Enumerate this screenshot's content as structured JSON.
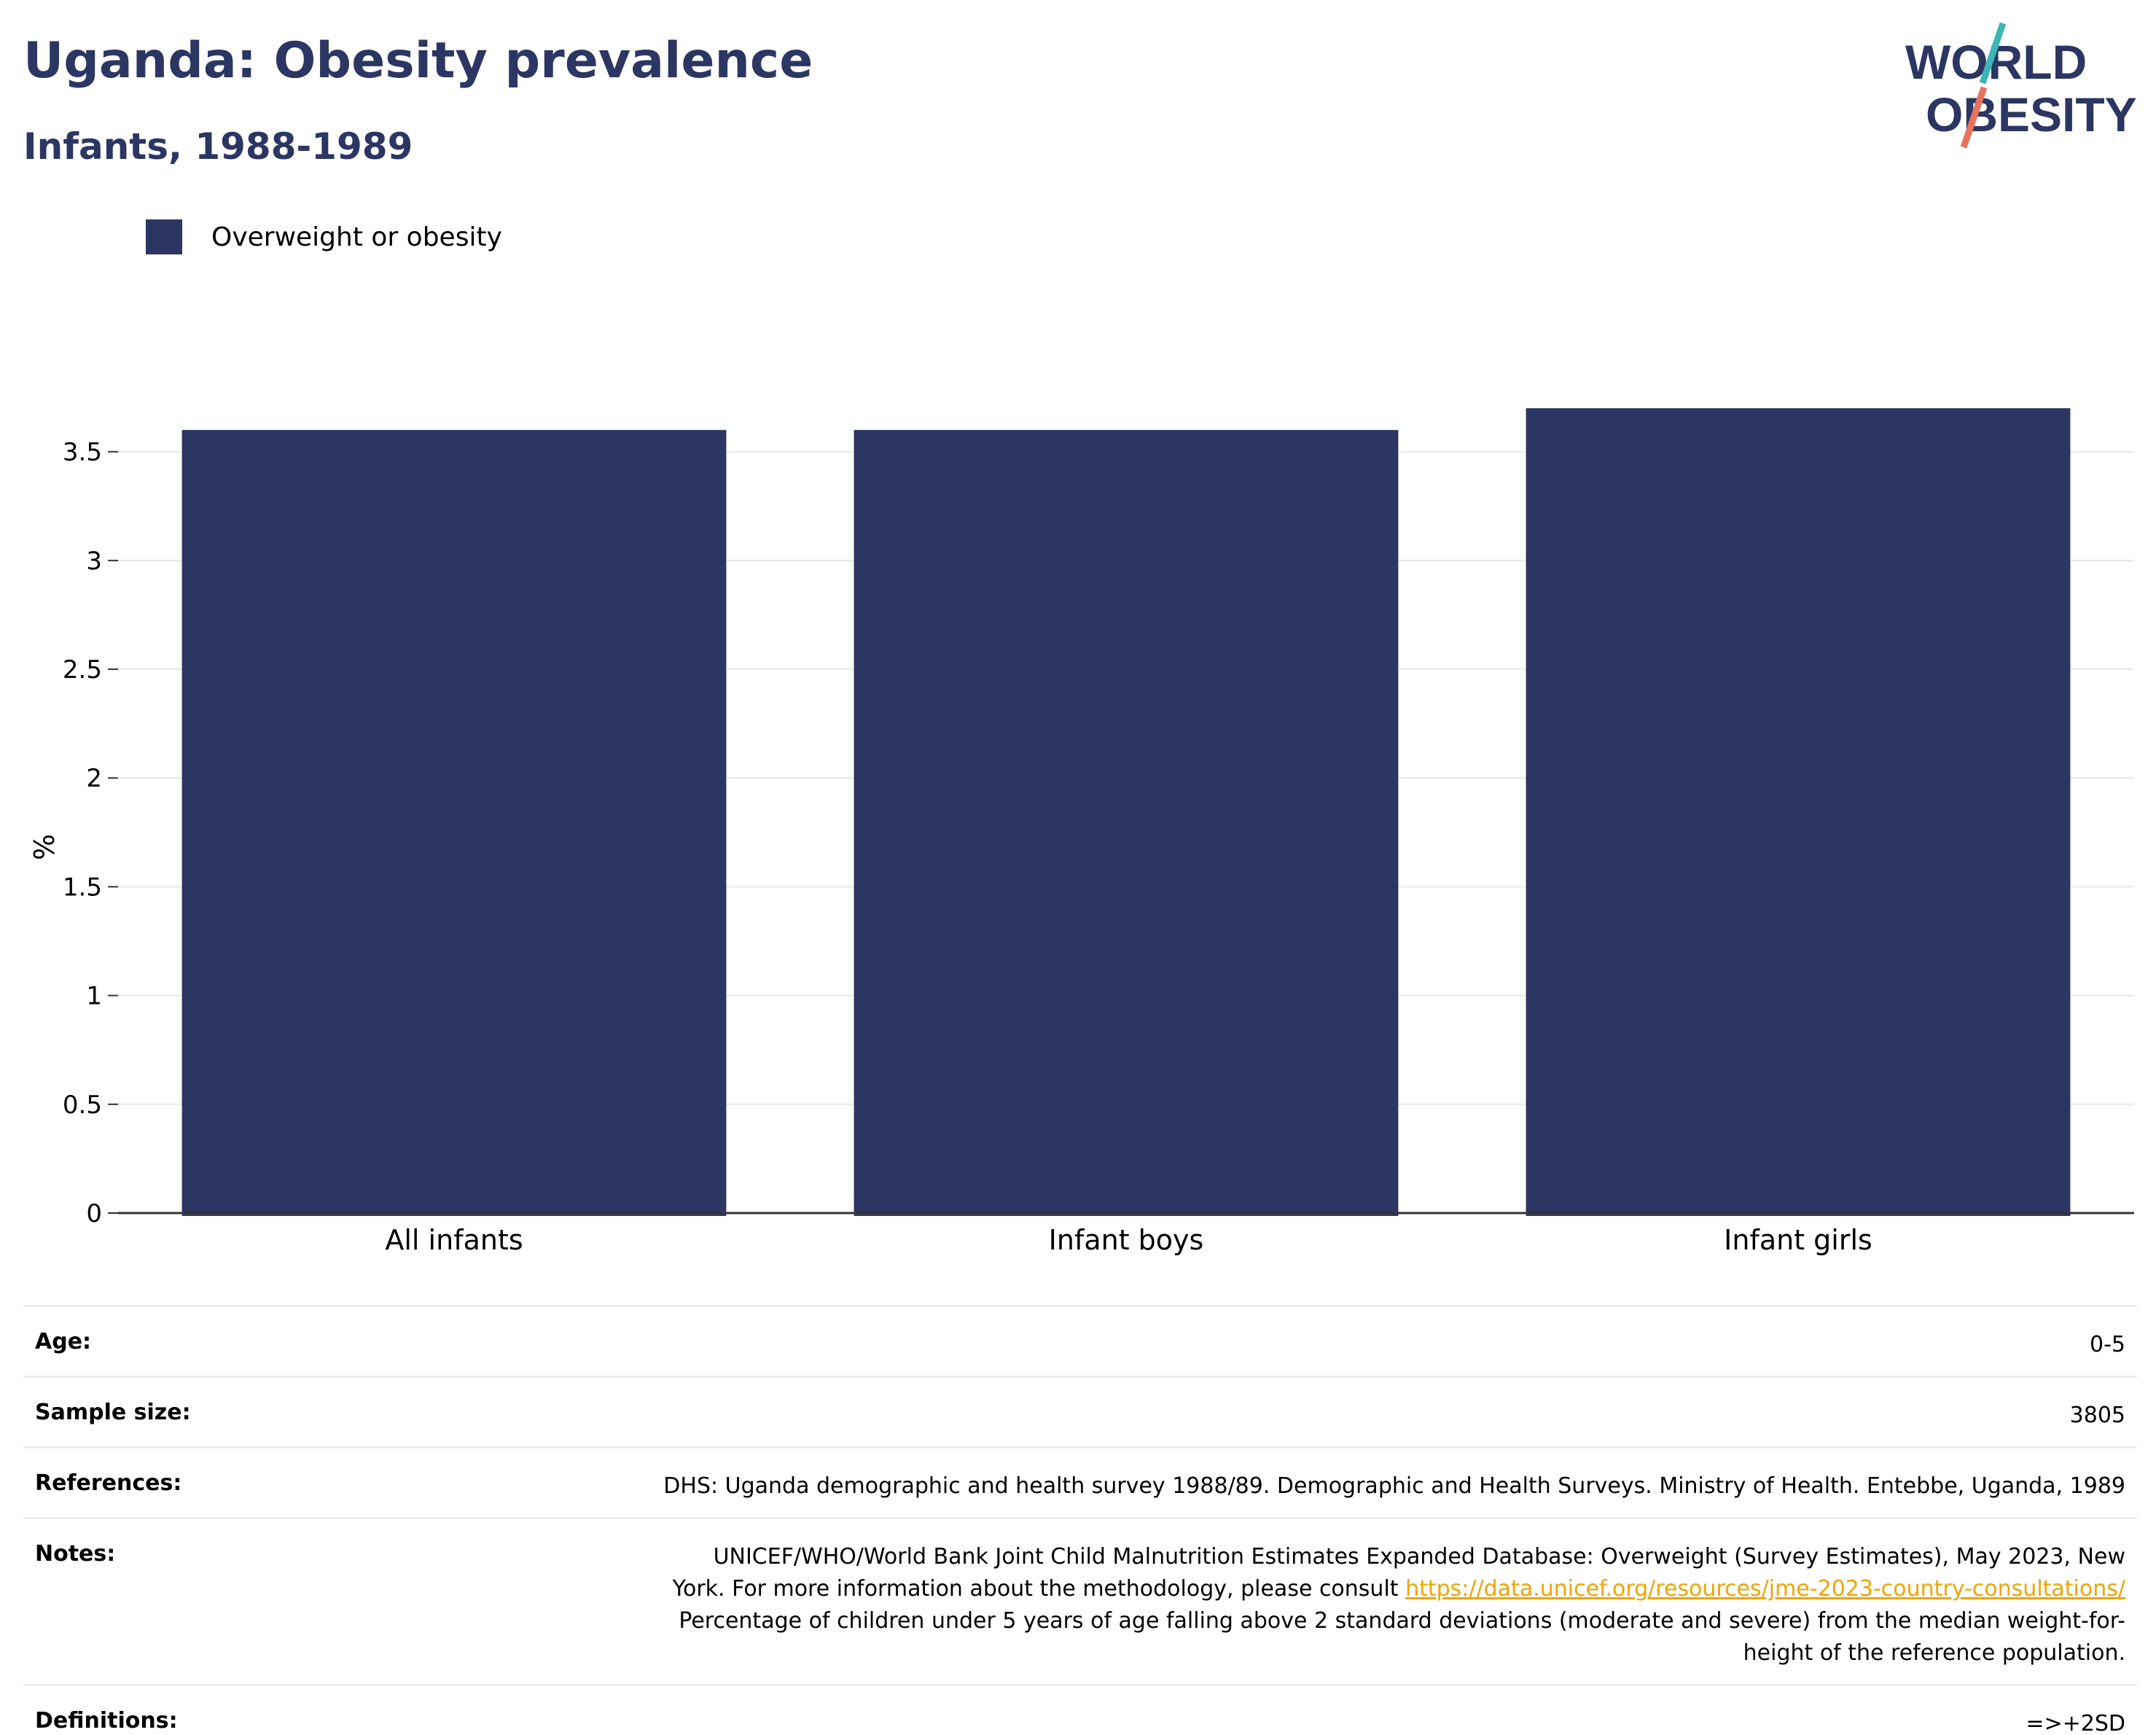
{
  "header": {
    "title": "Uganda: Obesity prevalence",
    "subtitle": "Infants, 1988-1989"
  },
  "logo": {
    "line1": "WORLD",
    "line2": "OBESITY",
    "colors": {
      "text": "#2b3663",
      "slash_top": "#3bb7b5",
      "slash_bottom": "#e8735a"
    }
  },
  "legend": {
    "label": "Overweight or obesity",
    "color": "#2b3663"
  },
  "chart_data": {
    "type": "bar",
    "categories": [
      "All infants",
      "Infant boys",
      "Infant girls"
    ],
    "series": [
      {
        "name": "Overweight or obesity",
        "values": [
          3.6,
          3.6,
          3.7
        ]
      }
    ],
    "ylabel": "%",
    "ylim": [
      0,
      3.7
    ],
    "yticks": [
      0,
      0.5,
      1,
      1.5,
      2,
      2.5,
      3,
      3.5
    ],
    "ytick_labels": [
      "0",
      "0.5",
      "1",
      "1.5",
      "2",
      "2.5",
      "3",
      "3.5"
    ],
    "grid": true,
    "bar_color": "#2b3663"
  },
  "info": {
    "age": {
      "label": "Age:",
      "value": "0-5"
    },
    "sample_size": {
      "label": "Sample size:",
      "value": "3805"
    },
    "references": {
      "label": "References:",
      "value": "DHS: Uganda demographic and health survey 1988/89. Demographic and Health Surveys. Ministry of Health. Entebbe, Uganda, 1989"
    },
    "notes": {
      "label": "Notes:",
      "line1": "UNICEF/WHO/World Bank Joint Child Malnutrition Estimates Expanded Database: Overweight (Survey Estimates), May 2023, New",
      "line2_prefix": "York. For more information about the methodology, please consult ",
      "link": "https://data.unicef.org/resources/jme-2023-country-consultations/",
      "line3": "Percentage of children under 5 years of age falling above 2 standard deviations (moderate and severe) from the median weight-for-",
      "line4": "height of the reference population."
    },
    "definitions": {
      "label": "Definitions:",
      "value": "=>+2SD"
    }
  }
}
